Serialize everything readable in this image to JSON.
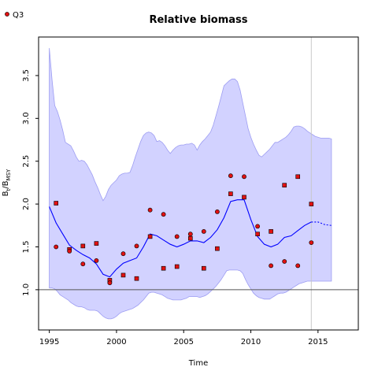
{
  "chart_data": {
    "type": "scatter",
    "title": "Relative biomass",
    "xlabel": "Time",
    "ylabel": {
      "base": "B",
      "sub1": "t",
      "mid": "/B",
      "sub2": "MSY"
    },
    "xlim": [
      1994.2,
      2018.0
    ],
    "ylim": [
      0.53,
      3.95
    ],
    "xticks": [
      1995,
      2000,
      2005,
      2010,
      2015
    ],
    "yticks": [
      1.0,
      1.5,
      2.0,
      2.5,
      3.0,
      3.5
    ],
    "reference_line_y": 1.0,
    "vertical_line_x": 2014.5,
    "legend": {
      "label": "Q3",
      "position": "top-left"
    },
    "colors": {
      "band": "#d2d2ff",
      "band_edge": "#9d9df2",
      "median": "#0000ff",
      "points": "#e11111",
      "refline": "#555555",
      "vline": "#c8c8c8"
    },
    "band": {
      "x": [
        1995.0,
        1995.2,
        1995.4,
        1995.6,
        1995.8,
        1996.0,
        1996.2,
        1996.4,
        1996.6,
        1996.8,
        1997.0,
        1997.2,
        1997.4,
        1997.6,
        1997.8,
        1998.0,
        1998.2,
        1998.4,
        1998.6,
        1998.8,
        1999.0,
        1999.2,
        1999.4,
        1999.6,
        1999.8,
        2000.0,
        2000.2,
        2000.4,
        2000.6,
        2000.8,
        2001.0,
        2001.2,
        2001.4,
        2001.6,
        2001.8,
        2002.0,
        2002.2,
        2002.4,
        2002.6,
        2002.8,
        2003.0,
        2003.2,
        2003.4,
        2003.6,
        2003.8,
        2004.0,
        2004.2,
        2004.4,
        2004.6,
        2004.8,
        2005.0,
        2005.2,
        2005.4,
        2005.6,
        2005.8,
        2006.0,
        2006.2,
        2006.4,
        2006.6,
        2006.8,
        2007.0,
        2007.2,
        2007.4,
        2007.6,
        2007.8,
        2008.0,
        2008.2,
        2008.4,
        2008.6,
        2008.8,
        2009.0,
        2009.2,
        2009.4,
        2009.6,
        2009.8,
        2010.0,
        2010.2,
        2010.4,
        2010.6,
        2010.8,
        2011.0,
        2011.2,
        2011.4,
        2011.6,
        2011.8,
        2012.0,
        2012.2,
        2012.4,
        2012.6,
        2012.8,
        2013.0,
        2013.2,
        2013.4,
        2013.6,
        2013.8,
        2014.0,
        2014.2,
        2014.4,
        2014.6,
        2014.8,
        2015.0,
        2015.2,
        2015.4,
        2015.6,
        2015.8,
        2016.0
      ],
      "upper": [
        3.82,
        3.45,
        3.15,
        3.08,
        2.98,
        2.86,
        2.72,
        2.7,
        2.68,
        2.62,
        2.55,
        2.5,
        2.51,
        2.5,
        2.46,
        2.4,
        2.34,
        2.26,
        2.19,
        2.11,
        2.04,
        2.09,
        2.17,
        2.22,
        2.25,
        2.28,
        2.33,
        2.35,
        2.36,
        2.36,
        2.37,
        2.45,
        2.55,
        2.64,
        2.73,
        2.8,
        2.83,
        2.84,
        2.83,
        2.8,
        2.73,
        2.74,
        2.72,
        2.68,
        2.63,
        2.59,
        2.63,
        2.66,
        2.68,
        2.69,
        2.69,
        2.7,
        2.7,
        2.71,
        2.69,
        2.63,
        2.69,
        2.73,
        2.76,
        2.8,
        2.84,
        2.92,
        3.03,
        3.14,
        3.26,
        3.38,
        3.41,
        3.44,
        3.46,
        3.46,
        3.43,
        3.33,
        3.18,
        3.03,
        2.88,
        2.78,
        2.7,
        2.63,
        2.57,
        2.55,
        2.58,
        2.61,
        2.64,
        2.68,
        2.72,
        2.72,
        2.74,
        2.76,
        2.78,
        2.81,
        2.85,
        2.9,
        2.91,
        2.91,
        2.9,
        2.88,
        2.85,
        2.83,
        2.81,
        2.79,
        2.78,
        2.77,
        2.77,
        2.77,
        2.77,
        2.76
      ],
      "lower": [
        1.02,
        1.02,
        1.01,
        0.98,
        0.94,
        0.92,
        0.9,
        0.88,
        0.85,
        0.83,
        0.81,
        0.8,
        0.8,
        0.79,
        0.77,
        0.76,
        0.76,
        0.76,
        0.75,
        0.72,
        0.69,
        0.67,
        0.66,
        0.66,
        0.67,
        0.69,
        0.72,
        0.74,
        0.75,
        0.76,
        0.77,
        0.78,
        0.8,
        0.82,
        0.85,
        0.88,
        0.92,
        0.96,
        0.97,
        0.97,
        0.96,
        0.95,
        0.94,
        0.92,
        0.9,
        0.89,
        0.88,
        0.88,
        0.88,
        0.88,
        0.89,
        0.9,
        0.92,
        0.92,
        0.92,
        0.92,
        0.91,
        0.92,
        0.93,
        0.95,
        0.98,
        1.01,
        1.04,
        1.08,
        1.12,
        1.17,
        1.22,
        1.23,
        1.23,
        1.23,
        1.23,
        1.22,
        1.19,
        1.12,
        1.06,
        1.01,
        0.96,
        0.93,
        0.91,
        0.9,
        0.89,
        0.89,
        0.89,
        0.91,
        0.93,
        0.95,
        0.96,
        0.96,
        0.97,
        0.99,
        1.01,
        1.03,
        1.05,
        1.07,
        1.08,
        1.09,
        1.1,
        1.1,
        1.1,
        1.1,
        1.1,
        1.1,
        1.1,
        1.1,
        1.1,
        1.1
      ]
    },
    "median_line": {
      "x": [
        1995.0,
        1995.5,
        1996.0,
        1996.5,
        1997.0,
        1997.5,
        1998.0,
        1998.5,
        1999.0,
        1999.5,
        2000.0,
        2000.5,
        2001.0,
        2001.5,
        2002.0,
        2002.5,
        2003.0,
        2003.5,
        2004.0,
        2004.5,
        2005.0,
        2005.5,
        2006.0,
        2006.5,
        2007.0,
        2007.5,
        2008.0,
        2008.5,
        2009.0,
        2009.5,
        2010.0,
        2010.5,
        2011.0,
        2011.5,
        2012.0,
        2012.5,
        2013.0,
        2013.5,
        2014.0,
        2014.5
      ],
      "y": [
        1.97,
        1.78,
        1.65,
        1.52,
        1.46,
        1.41,
        1.37,
        1.3,
        1.18,
        1.15,
        1.24,
        1.31,
        1.34,
        1.37,
        1.5,
        1.65,
        1.63,
        1.58,
        1.53,
        1.5,
        1.53,
        1.57,
        1.57,
        1.55,
        1.61,
        1.7,
        1.84,
        2.03,
        2.05,
        2.05,
        1.82,
        1.62,
        1.53,
        1.5,
        1.53,
        1.61,
        1.63,
        1.69,
        1.75,
        1.79
      ]
    },
    "median_dashed": {
      "x": [
        2014.5,
        2015.0,
        2015.5,
        2016.0
      ],
      "y": [
        1.79,
        1.79,
        1.76,
        1.75
      ]
    },
    "points": {
      "x": [
        1995.5,
        1995.5,
        1996.5,
        1996.5,
        1997.5,
        1997.5,
        1998.5,
        1998.5,
        1999.5,
        1999.5,
        2000.5,
        2000.5,
        2001.5,
        2001.5,
        2002.5,
        2002.5,
        2003.5,
        2003.5,
        2004.5,
        2004.5,
        2005.5,
        2005.5,
        2006.5,
        2006.5,
        2007.5,
        2007.5,
        2008.5,
        2008.5,
        2009.5,
        2009.5,
        2010.5,
        2010.5,
        2011.5,
        2011.5,
        2012.5,
        2012.5,
        2013.5,
        2013.5,
        2014.5,
        2014.5
      ],
      "y": [
        2.01,
        1.5,
        1.47,
        1.45,
        1.51,
        1.3,
        1.54,
        1.34,
        1.11,
        1.08,
        1.42,
        1.17,
        1.51,
        1.13,
        1.62,
        1.93,
        1.25,
        1.88,
        1.27,
        1.62,
        1.65,
        1.6,
        1.68,
        1.25,
        1.48,
        1.91,
        2.12,
        2.33,
        2.08,
        2.32,
        1.74,
        1.65,
        1.68,
        1.28,
        2.22,
        1.33,
        2.32,
        1.28,
        2.0,
        1.55
      ],
      "marker": [
        "square",
        "circle",
        "square",
        "circle",
        "square",
        "circle",
        "square",
        "circle",
        "square",
        "circle",
        "circle",
        "square",
        "circle",
        "square",
        "square",
        "circle",
        "square",
        "circle",
        "square",
        "circle",
        "circle",
        "square",
        "circle",
        "square",
        "square",
        "circle",
        "square",
        "circle",
        "square",
        "circle",
        "circle",
        "square",
        "square",
        "circle",
        "square",
        "circle",
        "square",
        "circle",
        "square",
        "circle"
      ]
    }
  }
}
